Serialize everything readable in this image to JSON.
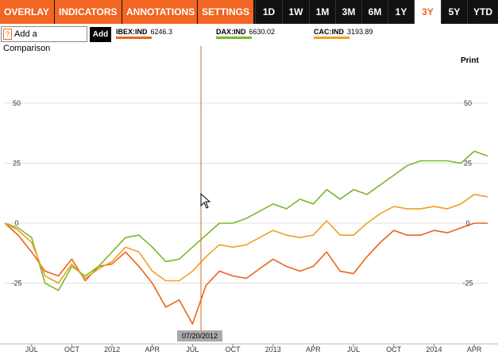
{
  "toolbar": {
    "menus": [
      {
        "label": "OVERLAY"
      },
      {
        "label": "INDICATORS"
      },
      {
        "label": "ANNOTATIONS"
      },
      {
        "label": "SETTINGS"
      }
    ],
    "ranges": [
      "1D",
      "1W",
      "1M",
      "3M",
      "6M",
      "1Y",
      "3Y",
      "5Y",
      "YTD"
    ],
    "active_range": "3Y",
    "accent_color": "#f26522"
  },
  "compare": {
    "help_icon": "?",
    "placeholder": "Add a Comparison",
    "add_label": "Add"
  },
  "print_label": "Print",
  "crosshair": {
    "date_label": "07/20/2012"
  },
  "chart_data": {
    "type": "line",
    "x_unit": "month",
    "x_range": [
      "2011-05",
      "2014-05"
    ],
    "x_ticks": [
      {
        "date": "2011-07",
        "label": "JUL"
      },
      {
        "date": "2011-10",
        "label": "OCT"
      },
      {
        "date": "2012-01",
        "label": "2012"
      },
      {
        "date": "2012-04",
        "label": "APR"
      },
      {
        "date": "2012-07",
        "label": "JUL"
      },
      {
        "date": "2012-10",
        "label": "OCT"
      },
      {
        "date": "2013-01",
        "label": "2013"
      },
      {
        "date": "2013-04",
        "label": "APR"
      },
      {
        "date": "2013-07",
        "label": "JUL"
      },
      {
        "date": "2013-10",
        "label": "OCT"
      },
      {
        "date": "2014-01",
        "label": "2014"
      },
      {
        "date": "2014-04",
        "label": "APR"
      }
    ],
    "y_ticks": [
      50,
      25,
      0,
      -25
    ],
    "y_range": [
      -40,
      60
    ],
    "grid": true,
    "series": [
      {
        "name": "IBEX:IND",
        "last": "6246.3",
        "color": "#e8651a",
        "values": [
          [
            "2011-05",
            0
          ],
          [
            "2011-06",
            -5
          ],
          [
            "2011-07",
            -12
          ],
          [
            "2011-08",
            -20
          ],
          [
            "2011-09",
            -22
          ],
          [
            "2011-10",
            -15
          ],
          [
            "2011-11",
            -24
          ],
          [
            "2011-12",
            -18
          ],
          [
            "2012-01",
            -17
          ],
          [
            "2012-02",
            -12
          ],
          [
            "2012-03",
            -18
          ],
          [
            "2012-04",
            -25
          ],
          [
            "2012-05",
            -35
          ],
          [
            "2012-06",
            -32
          ],
          [
            "2012-07",
            -42
          ],
          [
            "2012-08",
            -26
          ],
          [
            "2012-09",
            -20
          ],
          [
            "2012-10",
            -22
          ],
          [
            "2012-11",
            -23
          ],
          [
            "2012-12",
            -19
          ],
          [
            "2013-01",
            -15
          ],
          [
            "2013-02",
            -18
          ],
          [
            "2013-03",
            -20
          ],
          [
            "2013-04",
            -18
          ],
          [
            "2013-05",
            -12
          ],
          [
            "2013-06",
            -20
          ],
          [
            "2013-07",
            -21
          ],
          [
            "2013-08",
            -14
          ],
          [
            "2013-09",
            -8
          ],
          [
            "2013-10",
            -3
          ],
          [
            "2013-11",
            -5
          ],
          [
            "2013-12",
            -5
          ],
          [
            "2014-01",
            -3
          ],
          [
            "2014-02",
            -4
          ],
          [
            "2014-03",
            -2
          ],
          [
            "2014-04",
            0
          ],
          [
            "2014-05",
            0
          ]
        ]
      },
      {
        "name": "DAX:IND",
        "last": "6630.02",
        "color": "#7bb82a",
        "values": [
          [
            "2011-05",
            0
          ],
          [
            "2011-06",
            -2
          ],
          [
            "2011-07",
            -6
          ],
          [
            "2011-08",
            -25
          ],
          [
            "2011-09",
            -28
          ],
          [
            "2011-10",
            -18
          ],
          [
            "2011-11",
            -22
          ],
          [
            "2011-12",
            -18
          ],
          [
            "2012-01",
            -12
          ],
          [
            "2012-02",
            -6
          ],
          [
            "2012-03",
            -5
          ],
          [
            "2012-04",
            -10
          ],
          [
            "2012-05",
            -16
          ],
          [
            "2012-06",
            -15
          ],
          [
            "2012-07",
            -10
          ],
          [
            "2012-08",
            -5
          ],
          [
            "2012-09",
            0
          ],
          [
            "2012-10",
            0
          ],
          [
            "2012-11",
            2
          ],
          [
            "2012-12",
            5
          ],
          [
            "2013-01",
            8
          ],
          [
            "2013-02",
            6
          ],
          [
            "2013-03",
            10
          ],
          [
            "2013-04",
            8
          ],
          [
            "2013-05",
            14
          ],
          [
            "2013-06",
            10
          ],
          [
            "2013-07",
            14
          ],
          [
            "2013-08",
            12
          ],
          [
            "2013-09",
            16
          ],
          [
            "2013-10",
            20
          ],
          [
            "2013-11",
            24
          ],
          [
            "2013-12",
            26
          ],
          [
            "2014-01",
            26
          ],
          [
            "2014-02",
            26
          ],
          [
            "2014-03",
            25
          ],
          [
            "2014-04",
            30
          ],
          [
            "2014-05",
            28
          ]
        ]
      },
      {
        "name": "CAC:IND",
        "last": "3193.89",
        "color": "#f0a020",
        "values": [
          [
            "2011-05",
            0
          ],
          [
            "2011-06",
            -3
          ],
          [
            "2011-07",
            -8
          ],
          [
            "2011-08",
            -22
          ],
          [
            "2011-09",
            -25
          ],
          [
            "2011-10",
            -17
          ],
          [
            "2011-11",
            -23
          ],
          [
            "2011-12",
            -19
          ],
          [
            "2012-01",
            -16
          ],
          [
            "2012-02",
            -10
          ],
          [
            "2012-03",
            -12
          ],
          [
            "2012-04",
            -20
          ],
          [
            "2012-05",
            -24
          ],
          [
            "2012-06",
            -24
          ],
          [
            "2012-07",
            -20
          ],
          [
            "2012-08",
            -14
          ],
          [
            "2012-09",
            -9
          ],
          [
            "2012-10",
            -10
          ],
          [
            "2012-11",
            -9
          ],
          [
            "2012-12",
            -6
          ],
          [
            "2013-01",
            -3
          ],
          [
            "2013-02",
            -5
          ],
          [
            "2013-03",
            -6
          ],
          [
            "2013-04",
            -5
          ],
          [
            "2013-05",
            1
          ],
          [
            "2013-06",
            -5
          ],
          [
            "2013-07",
            -5
          ],
          [
            "2013-08",
            0
          ],
          [
            "2013-09",
            4
          ],
          [
            "2013-10",
            7
          ],
          [
            "2013-11",
            6
          ],
          [
            "2013-12",
            6
          ],
          [
            "2014-01",
            7
          ],
          [
            "2014-02",
            6
          ],
          [
            "2014-03",
            8
          ],
          [
            "2014-04",
            12
          ],
          [
            "2014-05",
            11
          ]
        ]
      }
    ]
  }
}
